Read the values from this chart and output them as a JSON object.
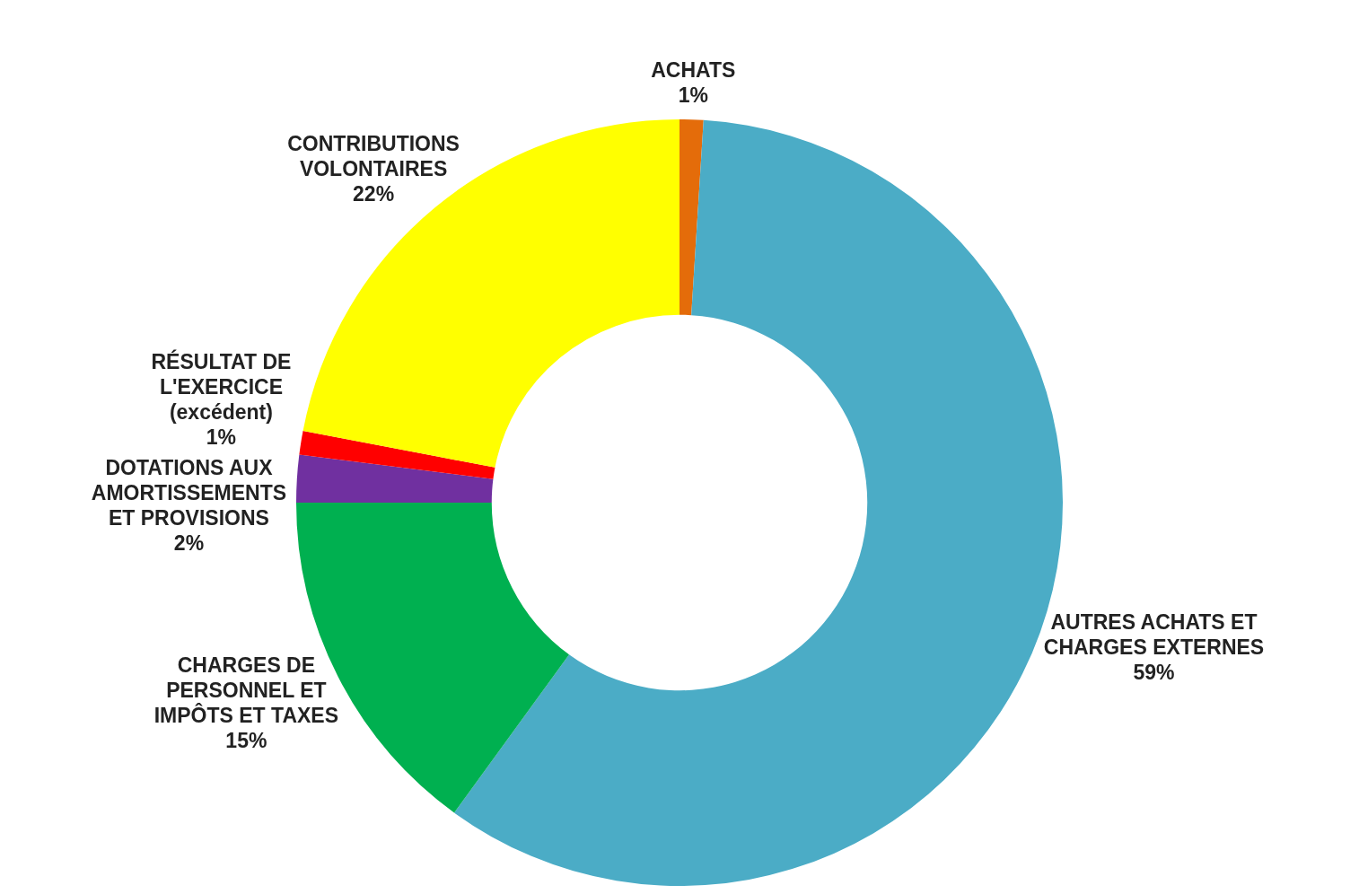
{
  "chart_data": {
    "type": "donut",
    "categories": [
      "ACHATS",
      "AUTRES ACHATS ET CHARGES EXTERNES",
      "CHARGES DE PERSONNEL ET IMPÔTS ET TAXES",
      "DOTATIONS AUX AMORTISSEMENTS ET PROVISIONS",
      "RÉSULTAT DE L'EXERCICE (excédent)",
      "CONTRIBUTIONS VOLONTAIRES"
    ],
    "values": [
      1,
      59,
      15,
      2,
      1,
      22
    ],
    "value_labels": [
      "1%",
      "59%",
      "15%",
      "2%",
      "1%",
      "22%"
    ],
    "colors": [
      "#e46c0a",
      "#4bacc6",
      "#00b050",
      "#7030a0",
      "#ff0000",
      "#ffff00"
    ],
    "legend": false
  }
}
